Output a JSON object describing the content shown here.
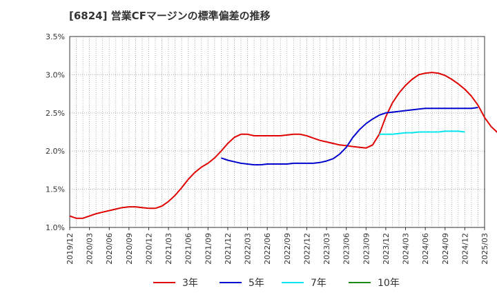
{
  "chart_data": {
    "type": "line",
    "title": "[6824]  営業CFマージンの標準偏差の推移",
    "xlabel": "",
    "ylabel": "",
    "ylim": [
      1.0,
      3.5
    ],
    "y_ticks": [
      "1.0%",
      "1.5%",
      "2.0%",
      "2.5%",
      "3.0%",
      "3.5%"
    ],
    "y_tick_values": [
      1.0,
      1.5,
      2.0,
      2.5,
      3.0,
      3.5
    ],
    "x_ticks": [
      "2019/12",
      "2020/03",
      "2020/06",
      "2020/09",
      "2020/12",
      "2021/03",
      "2021/06",
      "2021/09",
      "2021/12",
      "2022/03",
      "2022/06",
      "2022/09",
      "2022/12",
      "2023/03",
      "2023/06",
      "2023/09",
      "2023/12",
      "2024/03",
      "2024/06",
      "2024/09",
      "2024/12",
      "2025/03"
    ],
    "x_start": "2019/12",
    "x_end": "2025/03",
    "grid": true,
    "legend_position": "bottom",
    "series": [
      {
        "name": "3年",
        "color": "#e00000",
        "start": "2019/12",
        "values": [
          1.15,
          1.12,
          1.12,
          1.15,
          1.18,
          1.2,
          1.22,
          1.24,
          1.26,
          1.27,
          1.27,
          1.26,
          1.25,
          1.25,
          1.28,
          1.34,
          1.42,
          1.52,
          1.63,
          1.72,
          1.79,
          1.84,
          1.91,
          2.0,
          2.1,
          2.18,
          2.22,
          2.22,
          2.2,
          2.2,
          2.2,
          2.2,
          2.2,
          2.21,
          2.22,
          2.22,
          2.2,
          2.17,
          2.14,
          2.12,
          2.1,
          2.08,
          2.07,
          2.06,
          2.05,
          2.04,
          2.08,
          2.22,
          2.45,
          2.63,
          2.76,
          2.86,
          2.94,
          3.0,
          3.02,
          3.03,
          3.02,
          2.99,
          2.94,
          2.88,
          2.81,
          2.72,
          2.6,
          2.44,
          2.32,
          2.24,
          2.23
        ]
      },
      {
        "name": "5年",
        "color": "#0000cc",
        "start": "2021/11",
        "values": [
          1.91,
          1.88,
          1.86,
          1.84,
          1.83,
          1.82,
          1.82,
          1.83,
          1.83,
          1.83,
          1.83,
          1.84,
          1.84,
          1.84,
          1.84,
          1.85,
          1.87,
          1.9,
          1.96,
          2.05,
          2.18,
          2.28,
          2.36,
          2.42,
          2.47,
          2.5,
          2.51,
          2.52,
          2.53,
          2.54,
          2.55,
          2.56,
          2.56,
          2.56,
          2.56,
          2.56,
          2.56,
          2.56,
          2.56,
          2.57
        ]
      },
      {
        "name": "7年",
        "color": "#00e5ee",
        "start": "2023/11",
        "values": [
          2.22,
          2.22,
          2.22,
          2.23,
          2.24,
          2.24,
          2.25,
          2.25,
          2.25,
          2.25,
          2.26,
          2.26,
          2.26,
          2.25
        ]
      },
      {
        "name": "10年",
        "color": "#1a8a1a",
        "start": "2024/12",
        "values": []
      }
    ]
  }
}
